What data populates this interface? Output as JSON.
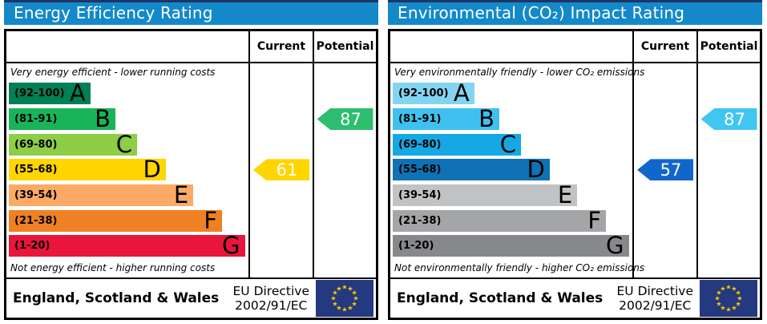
{
  "panels": [
    {
      "title": "Energy Efficiency Rating",
      "header_bg": "#1389ca",
      "columns": {
        "current": "Current",
        "potential": "Potential"
      },
      "top_caption": "Very energy efficient - lower running costs",
      "bottom_caption": "Not energy efficient - higher running costs",
      "bands": [
        {
          "letter": "A",
          "range": "(92-100)",
          "color": "#008054",
          "width": "34%"
        },
        {
          "letter": "B",
          "range": "(81-91)",
          "color": "#19b459",
          "width": "44.5%"
        },
        {
          "letter": "C",
          "range": "(69-80)",
          "color": "#8dce46",
          "width": "53.5%"
        },
        {
          "letter": "D",
          "range": "(55-68)",
          "color": "#ffd500",
          "width": "65.5%"
        },
        {
          "letter": "E",
          "range": "(39-54)",
          "color": "#fcaa65",
          "width": "77%"
        },
        {
          "letter": "F",
          "range": "(21-38)",
          "color": "#ef8023",
          "width": "89%"
        },
        {
          "letter": "G",
          "range": "(1-20)",
          "color": "#e9153b",
          "width": "98.5%"
        }
      ],
      "current": {
        "value": "61",
        "color": "#ffd500",
        "band": "D"
      },
      "potential": {
        "value": "87",
        "color": "#2ebd6e",
        "band": "B"
      },
      "footer": {
        "region": "England, Scotland & Wales",
        "directive_line1": "EU Directive",
        "directive_line2": "2002/91/EC"
      },
      "flag": {
        "bg": "#24397f",
        "star": "#ffcc00"
      }
    },
    {
      "title": "Environmental (CO₂) Impact Rating",
      "header_bg": "#1389ca",
      "columns": {
        "current": "Current",
        "potential": "Potential"
      },
      "top_caption": "Very environmentally friendly - lower CO₂ emissions",
      "bottom_caption": "Not environmentally friendly - higher CO₂ emissions",
      "bands": [
        {
          "letter": "A",
          "range": "(92-100)",
          "color": "#82d4f2",
          "width": "34%"
        },
        {
          "letter": "B",
          "range": "(81-91)",
          "color": "#3ec1ef",
          "width": "44.5%"
        },
        {
          "letter": "C",
          "range": "(69-80)",
          "color": "#15a8e4",
          "width": "53.5%"
        },
        {
          "letter": "D",
          "range": "(55-68)",
          "color": "#0e72b5",
          "width": "65.5%"
        },
        {
          "letter": "E",
          "range": "(39-54)",
          "color": "#c1c2c4",
          "width": "77%"
        },
        {
          "letter": "F",
          "range": "(21-38)",
          "color": "#a3a5a7",
          "width": "89%"
        },
        {
          "letter": "G",
          "range": "(1-20)",
          "color": "#87888b",
          "width": "98.5%"
        }
      ],
      "current": {
        "value": "57",
        "color": "#1166cb",
        "band": "D"
      },
      "potential": {
        "value": "87",
        "color": "#41c6f2",
        "band": "B"
      },
      "footer": {
        "region": "England, Scotland & Wales",
        "directive_line1": "EU Directive",
        "directive_line2": "2002/91/EC"
      },
      "flag": {
        "bg": "#24397f",
        "star": "#ffcc00"
      }
    }
  ],
  "chart_data": [
    {
      "type": "bar",
      "title": "Energy Efficiency Rating",
      "scale_min": 1,
      "scale_max": 100,
      "bands": [
        {
          "letter": "A",
          "range": [
            92,
            100
          ],
          "color": "#008054"
        },
        {
          "letter": "B",
          "range": [
            81,
            91
          ],
          "color": "#19b459"
        },
        {
          "letter": "C",
          "range": [
            69,
            80
          ],
          "color": "#8dce46"
        },
        {
          "letter": "D",
          "range": [
            55,
            68
          ],
          "color": "#ffd500"
        },
        {
          "letter": "E",
          "range": [
            39,
            54
          ],
          "color": "#fcaa65"
        },
        {
          "letter": "F",
          "range": [
            21,
            38
          ],
          "color": "#ef8023"
        },
        {
          "letter": "G",
          "range": [
            1,
            20
          ],
          "color": "#e9153b"
        }
      ],
      "current": {
        "value": 61,
        "band": "D"
      },
      "potential": {
        "value": 87,
        "band": "B"
      },
      "top_label": "Very energy efficient - lower running costs",
      "bottom_label": "Not energy efficient - higher running costs",
      "footer": "England, Scotland & Wales — EU Directive 2002/91/EC"
    },
    {
      "type": "bar",
      "title": "Environmental (CO₂) Impact Rating",
      "scale_min": 1,
      "scale_max": 100,
      "bands": [
        {
          "letter": "A",
          "range": [
            92,
            100
          ],
          "color": "#82d4f2"
        },
        {
          "letter": "B",
          "range": [
            81,
            91
          ],
          "color": "#3ec1ef"
        },
        {
          "letter": "C",
          "range": [
            69,
            80
          ],
          "color": "#15a8e4"
        },
        {
          "letter": "D",
          "range": [
            55,
            68
          ],
          "color": "#0e72b5"
        },
        {
          "letter": "E",
          "range": [
            39,
            54
          ],
          "color": "#c1c2c4"
        },
        {
          "letter": "F",
          "range": [
            21,
            38
          ],
          "color": "#a3a5a7"
        },
        {
          "letter": "G",
          "range": [
            1,
            20
          ],
          "color": "#87888b"
        }
      ],
      "current": {
        "value": 57,
        "band": "D"
      },
      "potential": {
        "value": 87,
        "band": "B"
      },
      "top_label": "Very environmentally friendly - lower CO₂ emissions",
      "bottom_label": "Not environmentally friendly - higher CO₂ emissions",
      "footer": "England, Scotland & Wales — EU Directive 2002/91/EC"
    }
  ]
}
